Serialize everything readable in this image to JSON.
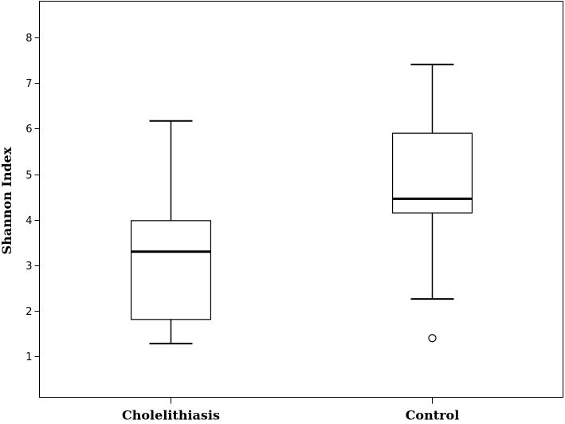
{
  "chart_data": {
    "type": "box",
    "title": "",
    "xlabel": "",
    "ylabel": "Shannon Index",
    "ylim": [
      0.1,
      8.8
    ],
    "yticks": [
      1,
      2,
      3,
      4,
      5,
      6,
      7,
      8
    ],
    "grid": false,
    "categories": [
      "Cholelithiasis",
      "Control"
    ],
    "boxes": [
      {
        "category": "Cholelithiasis",
        "whisker_low": 1.28,
        "q1": 1.81,
        "median": 3.3,
        "q3": 3.98,
        "whisker_high": 6.17,
        "outliers": []
      },
      {
        "category": "Control",
        "whisker_low": 2.26,
        "q1": 4.15,
        "median": 4.46,
        "q3": 5.9,
        "whisker_high": 7.41,
        "outliers": [
          1.4
        ]
      }
    ]
  }
}
